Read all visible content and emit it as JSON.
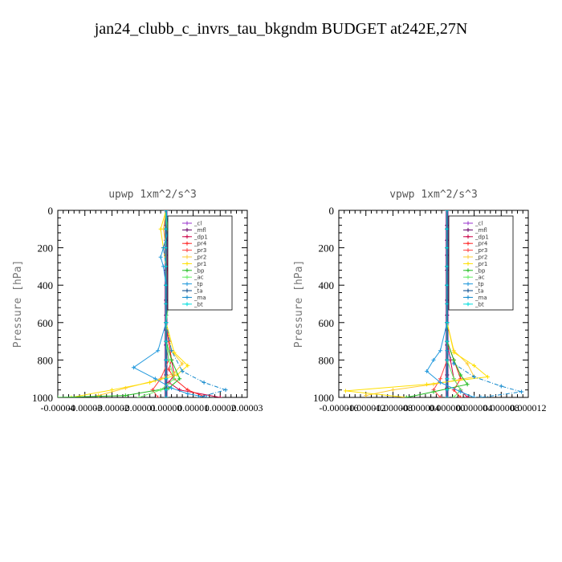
{
  "title": "jan24_clubb_c_invrs_tau_bkgndm  BUDGET at242E,27N",
  "chart_data": [
    {
      "type": "line",
      "title": "upwp   1xm^2/s^3",
      "ylabel": "Pressure [hPa]",
      "ylim": [
        1000,
        0
      ],
      "yticks": [
        0,
        200,
        400,
        600,
        800,
        1000
      ],
      "xlim": [
        -4e-05,
        3e-05
      ],
      "xtick_labels": [
        "-0.00004",
        "-0.00003",
        "-0.00002",
        "-0.00001",
        "0.00000",
        "0.00001",
        "0.00002",
        "0.00003"
      ],
      "legend": [
        "_cl",
        "_mfl",
        "_dp1",
        "_pr4",
        "_pr3",
        "_pr2",
        "_pr1",
        "_bp",
        "_ac",
        "_tp",
        "_ta",
        "_ma",
        "_bt"
      ],
      "series": [
        {
          "name": "_cl",
          "color": "#9933cc",
          "x": [
            0,
            0,
            0,
            0,
            0,
            0,
            0,
            0,
            0,
            0,
            0,
            0,
            0,
            0
          ],
          "y": [
            0,
            80,
            160,
            240,
            320,
            400,
            480,
            560,
            640,
            720,
            800,
            880,
            950,
            1000
          ]
        },
        {
          "name": "_mfl",
          "color": "#660066",
          "x": [
            0,
            0,
            0,
            0,
            0,
            0,
            0,
            0,
            0,
            0,
            0,
            0,
            0,
            0
          ],
          "y": [
            0,
            80,
            160,
            240,
            320,
            400,
            480,
            560,
            640,
            720,
            800,
            880,
            950,
            1000
          ]
        },
        {
          "name": "_dp1",
          "color": "#cc0044",
          "x": [
            0,
            0,
            0,
            5e-07,
            0,
            0,
            0,
            1e-06,
            2e-06,
            3e-06,
            1e-06,
            5e-06,
            2e-05
          ],
          "y": [
            0,
            100,
            200,
            300,
            400,
            500,
            600,
            700,
            800,
            880,
            920,
            960,
            1000
          ]
        },
        {
          "name": "_pr4",
          "color": "#ff2222",
          "x": [
            0,
            0,
            0,
            0,
            0,
            0,
            0,
            1e-06,
            2e-06,
            1e-06,
            3e-06,
            8e-06,
            1.5e-05
          ],
          "y": [
            0,
            100,
            200,
            300,
            400,
            500,
            600,
            700,
            800,
            850,
            900,
            960,
            1000
          ]
        },
        {
          "name": "_pr3",
          "color": "#ff4444",
          "x": [
            0,
            0,
            0,
            0,
            0,
            0,
            0,
            0,
            1e-06,
            -2e-06,
            -5e-06,
            -3e-06
          ],
          "y": [
            0,
            100,
            200,
            300,
            400,
            500,
            600,
            700,
            800,
            900,
            960,
            1000
          ]
        },
        {
          "name": "_pr2",
          "color": "#ffcc33",
          "x": [
            0,
            -1e-06,
            0,
            0,
            0,
            0,
            0,
            2e-06,
            6e-06,
            3e-06,
            -4e-06,
            -1.5e-05,
            -2.5e-05
          ],
          "y": [
            0,
            100,
            200,
            300,
            400,
            500,
            600,
            750,
            820,
            870,
            910,
            950,
            990
          ]
        },
        {
          "name": "_pr1",
          "color": "#ffe000",
          "x": [
            0,
            -2e-06,
            -1e-06,
            0,
            0,
            0,
            0,
            3e-06,
            8e-06,
            4e-06,
            -6e-06,
            -2e-05,
            -3.5e-05
          ],
          "y": [
            0,
            100,
            200,
            300,
            400,
            500,
            600,
            760,
            830,
            880,
            920,
            960,
            1000
          ]
        },
        {
          "name": "_bp",
          "color": "#22bb22",
          "x": [
            0,
            0,
            0,
            0,
            0,
            0,
            0,
            0,
            2e-06,
            5e-06,
            1e-06,
            -1.5e-05,
            -4e-05
          ],
          "y": [
            0,
            100,
            200,
            300,
            400,
            500,
            600,
            700,
            800,
            900,
            950,
            990,
            1000
          ]
        },
        {
          "name": "_ac",
          "color": "#66ee66",
          "x": [
            0,
            5e-07,
            1e-06,
            1e-06,
            2e-06,
            1e-06,
            0,
            0,
            1e-06,
            3e-06,
            -2e-06,
            -1e-05
          ],
          "y": [
            0,
            100,
            200,
            300,
            420,
            500,
            600,
            700,
            800,
            900,
            960,
            1000
          ]
        },
        {
          "name": "_tp",
          "color": "#2299dd",
          "x": [
            0,
            1e-06,
            -2e-06,
            -1e-06,
            0,
            0,
            0,
            -3e-06,
            -1.2e-05,
            -4e-06,
            2e-06,
            8e-06,
            1.5e-05
          ],
          "y": [
            0,
            100,
            250,
            300,
            400,
            500,
            600,
            750,
            840,
            900,
            950,
            980,
            1000
          ]
        },
        {
          "name": "_ta",
          "color": "#004488",
          "x": [
            0,
            0,
            0,
            0,
            0,
            0,
            0,
            0,
            0,
            0,
            0,
            0
          ],
          "y": [
            0,
            100,
            200,
            300,
            400,
            500,
            600,
            700,
            800,
            900,
            960,
            1000
          ]
        },
        {
          "name": "_ma",
          "color": "#1188cc",
          "x": [
            0,
            1e-06,
            -1e-06,
            0,
            0,
            0,
            0,
            2e-06,
            6e-06,
            1.4e-05,
            2.2e-05,
            1.2e-05
          ],
          "y": [
            0,
            100,
            200,
            300,
            400,
            500,
            600,
            750,
            860,
            920,
            960,
            1000
          ]
        },
        {
          "name": "_bt",
          "color": "#00dddd",
          "x": [
            0,
            0,
            0,
            0,
            0,
            0,
            0,
            0,
            0,
            0,
            0,
            0
          ],
          "y": [
            0,
            100,
            200,
            300,
            400,
            500,
            600,
            700,
            800,
            900,
            960,
            1000
          ]
        }
      ]
    },
    {
      "type": "line",
      "title": "vpwp   1xm^2/s^3",
      "ylabel": "Pressure [hPa]",
      "ylim": [
        1000,
        0
      ],
      "yticks": [
        0,
        200,
        400,
        600,
        800,
        1000
      ],
      "xlim": [
        -1.6e-05,
        1.2e-05
      ],
      "xtick_labels": [
        "-0.000016",
        "-0.000012",
        "-0.000008",
        "-0.000004",
        "0.000000",
        "0.000004",
        "0.000008",
        "0.000012"
      ],
      "legend": [
        "_cl",
        "_mfl",
        "_dp1",
        "_pr4",
        "_pr3",
        "_pr2",
        "_pr1",
        "_bp",
        "_ac",
        "_tp",
        "_ta",
        "_ma",
        "_bt"
      ],
      "series": [
        {
          "name": "_cl",
          "color": "#9933cc",
          "x": [
            0,
            0,
            0,
            0,
            0,
            0,
            0,
            0,
            0,
            0,
            0,
            0,
            0,
            0
          ],
          "y": [
            0,
            80,
            160,
            240,
            320,
            400,
            480,
            560,
            640,
            720,
            800,
            880,
            950,
            1000
          ]
        },
        {
          "name": "_mfl",
          "color": "#660066",
          "x": [
            0,
            0,
            0,
            0,
            0,
            0,
            0,
            0,
            0,
            0,
            0,
            0,
            0,
            0
          ],
          "y": [
            0,
            80,
            160,
            240,
            320,
            400,
            480,
            560,
            640,
            720,
            800,
            880,
            950,
            1000
          ]
        },
        {
          "name": "_dp1",
          "color": "#cc0044",
          "x": [
            0,
            0,
            0,
            0,
            0,
            0,
            0,
            0,
            5e-07,
            1e-06,
            2e-06,
            3e-06
          ],
          "y": [
            0,
            100,
            200,
            300,
            400,
            500,
            600,
            700,
            800,
            900,
            960,
            1000
          ]
        },
        {
          "name": "_pr4",
          "color": "#ff2222",
          "x": [
            0,
            0,
            0,
            0,
            0,
            0,
            0,
            0,
            1e-06,
            2e-06,
            1e-06,
            2e-06
          ],
          "y": [
            0,
            100,
            200,
            300,
            400,
            500,
            600,
            700,
            800,
            900,
            960,
            1000
          ]
        },
        {
          "name": "_pr3",
          "color": "#ff4444",
          "x": [
            0,
            0,
            0,
            0,
            0,
            0,
            0,
            0,
            0,
            -1e-06,
            -2e-06,
            -1e-06
          ],
          "y": [
            0,
            100,
            200,
            300,
            400,
            500,
            600,
            700,
            800,
            900,
            960,
            1000
          ]
        },
        {
          "name": "_pr2",
          "color": "#ffcc33",
          "x": [
            0,
            0,
            0,
            0,
            0,
            0,
            0,
            1e-06,
            3e-06,
            4e-06,
            -2e-06,
            -8e-06,
            -1.2e-05
          ],
          "y": [
            0,
            100,
            200,
            300,
            400,
            500,
            600,
            750,
            820,
            890,
            930,
            960,
            990
          ]
        },
        {
          "name": "_pr1",
          "color": "#ffe000",
          "x": [
            0,
            0,
            0,
            0,
            0,
            0,
            0,
            1e-06,
            4e-06,
            6e-06,
            -3e-06,
            -1.5e-05,
            -6e-06
          ],
          "y": [
            0,
            100,
            200,
            300,
            400,
            500,
            600,
            760,
            830,
            890,
            930,
            965,
            1000
          ]
        },
        {
          "name": "_bp",
          "color": "#22bb22",
          "x": [
            0,
            0,
            0,
            0,
            0,
            0,
            0,
            0,
            1e-06,
            2e-06,
            3e-06,
            -2e-06,
            -6e-06
          ],
          "y": [
            0,
            100,
            200,
            300,
            400,
            500,
            600,
            700,
            800,
            880,
            930,
            970,
            1000
          ]
        },
        {
          "name": "_ac",
          "color": "#66ee66",
          "x": [
            0,
            0,
            0,
            0,
            0,
            0,
            0,
            0,
            0,
            1e-06,
            2e-06,
            1e-06
          ],
          "y": [
            0,
            100,
            200,
            300,
            400,
            500,
            600,
            700,
            800,
            900,
            960,
            1000
          ]
        },
        {
          "name": "_tp",
          "color": "#2299dd",
          "x": [
            0,
            0,
            0,
            0,
            0,
            0,
            0,
            -1e-06,
            -2e-06,
            -3e-06,
            -1e-06,
            2e-06,
            4e-06
          ],
          "y": [
            0,
            100,
            200,
            300,
            400,
            500,
            600,
            750,
            800,
            860,
            920,
            970,
            1000
          ]
        },
        {
          "name": "_ta",
          "color": "#004488",
          "x": [
            0,
            0,
            0,
            0,
            0,
            0,
            0,
            0,
            0,
            0,
            0,
            0
          ],
          "y": [
            0,
            100,
            200,
            300,
            400,
            500,
            600,
            700,
            800,
            900,
            960,
            1000
          ]
        },
        {
          "name": "_ma",
          "color": "#1188cc",
          "x": [
            0,
            0,
            0,
            0,
            0,
            0,
            0,
            0,
            1e-06,
            4e-06,
            8e-06,
            1.1e-05,
            5e-06
          ],
          "y": [
            0,
            100,
            200,
            300,
            400,
            500,
            600,
            750,
            820,
            890,
            940,
            970,
            1000
          ]
        },
        {
          "name": "_bt",
          "color": "#00dddd",
          "x": [
            0,
            0,
            0,
            0,
            0,
            0,
            0,
            0,
            0,
            0,
            0,
            0
          ],
          "y": [
            0,
            100,
            200,
            300,
            400,
            500,
            600,
            700,
            800,
            900,
            960,
            1000
          ]
        }
      ]
    }
  ]
}
